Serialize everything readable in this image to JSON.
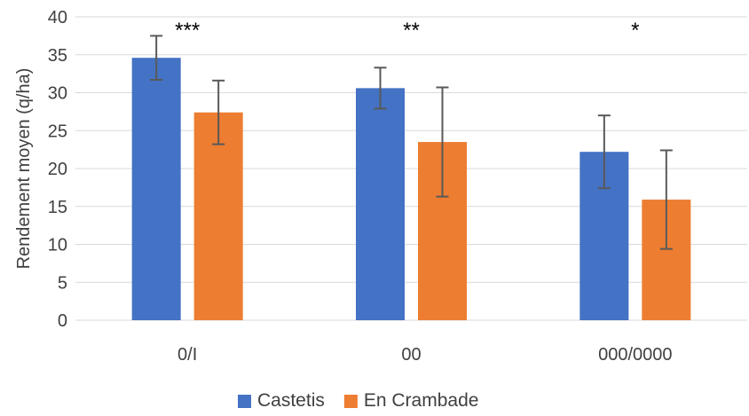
{
  "chart_data": {
    "type": "bar",
    "title": "",
    "xlabel": "",
    "ylabel": "Rendement moyen (q/ha)",
    "ylim": [
      0,
      40
    ],
    "yticks": [
      0,
      5,
      10,
      15,
      20,
      25,
      30,
      35,
      40
    ],
    "categories": [
      "0/I",
      "00",
      "000/0000"
    ],
    "series": [
      {
        "name": "Castetis",
        "color": "#4472C4",
        "values": [
          34.6,
          30.6,
          22.2
        ],
        "errors": [
          2.9,
          2.7,
          4.8
        ]
      },
      {
        "name": "En Crambade",
        "color": "#ED7D31",
        "values": [
          27.4,
          23.5,
          15.9
        ],
        "errors": [
          4.2,
          7.2,
          6.5
        ]
      }
    ],
    "annotations": [
      "***",
      "**",
      "*"
    ],
    "legend_position": "bottom",
    "grid": true
  }
}
